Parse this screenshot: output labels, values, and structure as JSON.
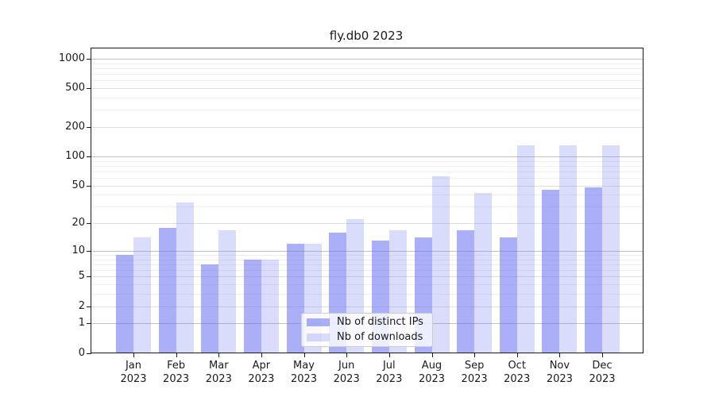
{
  "title": "fly.db0 2023",
  "chart_data": {
    "type": "bar",
    "title": "fly.db0 2023",
    "months": [
      "Jan",
      "Feb",
      "Mar",
      "Apr",
      "May",
      "Jun",
      "Jul",
      "Aug",
      "Sep",
      "Oct",
      "Nov",
      "Dec"
    ],
    "year": "2023",
    "series": [
      {
        "name": "Nb of distinct IPs",
        "color": "rgba(100,110,240,0.55)",
        "rendered_hex": "#aaaef7",
        "values": [
          9,
          18,
          7,
          8,
          12,
          16,
          13,
          14,
          17,
          14,
          45,
          48
        ]
      },
      {
        "name": "Nb of downloads",
        "color": "rgba(100,110,240,0.245)",
        "rendered_hex": "#d9dbfb",
        "values": [
          14,
          33,
          17,
          8,
          12,
          22,
          17,
          62,
          42,
          130,
          130,
          130
        ]
      }
    ],
    "y_axis": {
      "scale": "log10(1+value)",
      "tick_values": [
        0,
        1,
        2,
        5,
        10,
        20,
        50,
        100,
        200,
        500,
        1000
      ],
      "decade_tick_values": [
        1,
        10,
        100,
        1000
      ],
      "minor_gridline_values": [
        3,
        4,
        6,
        7,
        8,
        9,
        30,
        40,
        60,
        70,
        80,
        90,
        300,
        400,
        600,
        700,
        800,
        900
      ],
      "range": [
        0,
        1280
      ]
    },
    "grid": true,
    "legend": {
      "location": "lower center",
      "entries": [
        "Nb of distinct IPs",
        "Nb of downloads"
      ]
    }
  },
  "colors": {
    "bar_base": "#646ef0",
    "decade_gridline": "#c2c2c2",
    "major_gridline": "#dedede",
    "minor_gridline": "#efefef",
    "axis": "#1a1a1a",
    "background": "#ffffff",
    "legend_border": "#cccccc"
  }
}
